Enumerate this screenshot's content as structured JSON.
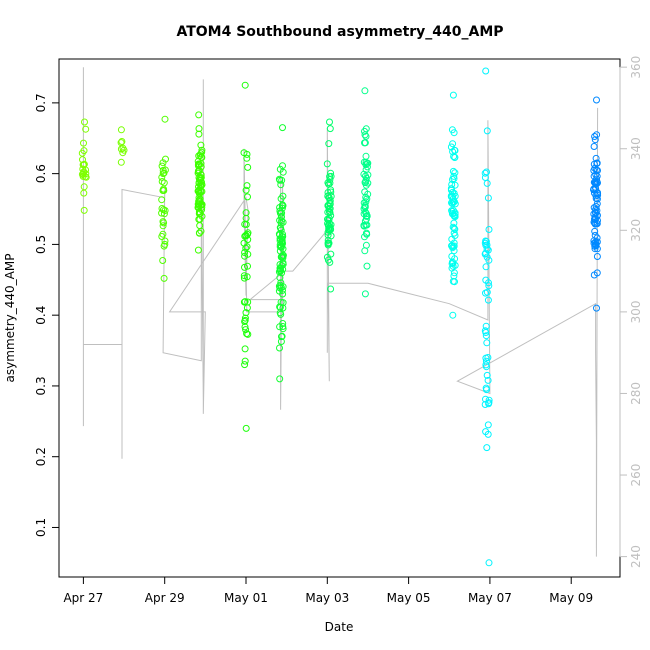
{
  "chart_data": {
    "type": "scatter",
    "title": "ATOM4 Southbound asymmetry_440_AMP",
    "xlabel": "Date",
    "ylabel": "asymmetry_440_AMP",
    "x_ticks": [
      {
        "day": 0,
        "label": "Apr 27"
      },
      {
        "day": 2,
        "label": "Apr 29"
      },
      {
        "day": 4,
        "label": "May 01"
      },
      {
        "day": 6,
        "label": "May 03"
      },
      {
        "day": 8,
        "label": "May 05"
      },
      {
        "day": 10,
        "label": "May 07"
      },
      {
        "day": 12,
        "label": "May 09"
      }
    ],
    "xlim": [
      -0.6,
      13.2
    ],
    "ylim": [
      0.03,
      0.762
    ],
    "y_ticks": [
      0.1,
      0.2,
      0.3,
      0.4,
      0.5,
      0.6,
      0.7
    ],
    "y2lim": [
      235,
      362
    ],
    "y2_ticks": [
      240,
      260,
      280,
      300,
      320,
      340,
      360
    ],
    "grid": false,
    "legend": "none",
    "colors": {
      "axis": "#000000",
      "secondary": "#bfbfbf"
    },
    "series": [
      {
        "day": 0.02,
        "color": "#7fff00",
        "min": 0.548,
        "max": 0.673,
        "n": 22
      },
      {
        "day": 0.95,
        "color": "#79ff00",
        "min": 0.616,
        "max": 0.662,
        "n": 8
      },
      {
        "day": 1.97,
        "color": "#52ff00",
        "min": 0.452,
        "max": 0.677,
        "n": 30
      },
      {
        "day": 2.87,
        "color": "#3eff00",
        "min": 0.492,
        "max": 0.683,
        "n": 75
      },
      {
        "day": 4.0,
        "color": "#1cff0a",
        "min": 0.24,
        "max": 0.725,
        "n": 45
      },
      {
        "day": 4.87,
        "color": "#12ff30",
        "min": 0.31,
        "max": 0.665,
        "n": 90
      },
      {
        "day": 6.05,
        "color": "#00ff6a",
        "min": 0.437,
        "max": 0.673,
        "n": 60
      },
      {
        "day": 6.95,
        "color": "#00ff8a",
        "min": 0.43,
        "max": 0.717,
        "n": 55
      },
      {
        "day": 9.1,
        "color": "#00fff0",
        "min": 0.4,
        "max": 0.711,
        "n": 70
      },
      {
        "day": 9.93,
        "color": "#00f4ff",
        "min": 0.05,
        "max": 0.745,
        "n": 50
      },
      {
        "day": 12.6,
        "color": "#0088ff",
        "min": 0.41,
        "max": 0.704,
        "n": 75
      }
    ],
    "secondary_line": {
      "name": "",
      "points": [
        [
          0.0,
          290
        ],
        [
          0.0,
          360
        ],
        [
          0.0,
          272
        ],
        [
          0.0,
          292
        ],
        [
          0.95,
          292
        ],
        [
          0.95,
          280
        ],
        [
          0.95,
          264
        ],
        [
          0.95,
          274
        ],
        [
          0.95,
          330
        ],
        [
          2.0,
          328
        ],
        [
          2.0,
          330
        ],
        [
          1.96,
          290
        ],
        [
          2.9,
          288
        ],
        [
          2.9,
          332
        ],
        [
          2.95,
          278
        ],
        [
          2.95,
          357
        ],
        [
          2.95,
          275
        ],
        [
          3.0,
          300
        ],
        [
          2.12,
          300
        ],
        [
          4.0,
          328
        ],
        [
          4.05,
          325
        ],
        [
          4.0,
          304
        ],
        [
          3.95,
          325
        ],
        [
          3.95,
          340
        ],
        [
          4.02,
          300
        ],
        [
          4.9,
          300
        ],
        [
          4.9,
          332
        ],
        [
          4.85,
          276
        ],
        [
          4.85,
          335
        ],
        [
          4.87,
          303
        ],
        [
          4.1,
          303
        ],
        [
          4.95,
          310
        ],
        [
          5.15,
          310
        ],
        [
          6.0,
          320
        ],
        [
          6.0,
          290
        ],
        [
          6.0,
          345
        ],
        [
          6.05,
          283
        ],
        [
          6.02,
          307
        ],
        [
          7.0,
          307
        ],
        [
          9.0,
          302
        ],
        [
          9.95,
          298
        ],
        [
          9.95,
          347
        ],
        [
          10.0,
          280
        ],
        [
          9.2,
          283
        ],
        [
          12.6,
          302
        ],
        [
          12.6,
          290
        ],
        [
          12.62,
          268
        ],
        [
          12.62,
          242
        ],
        [
          12.65,
          350
        ],
        [
          12.62,
          240
        ]
      ]
    }
  }
}
